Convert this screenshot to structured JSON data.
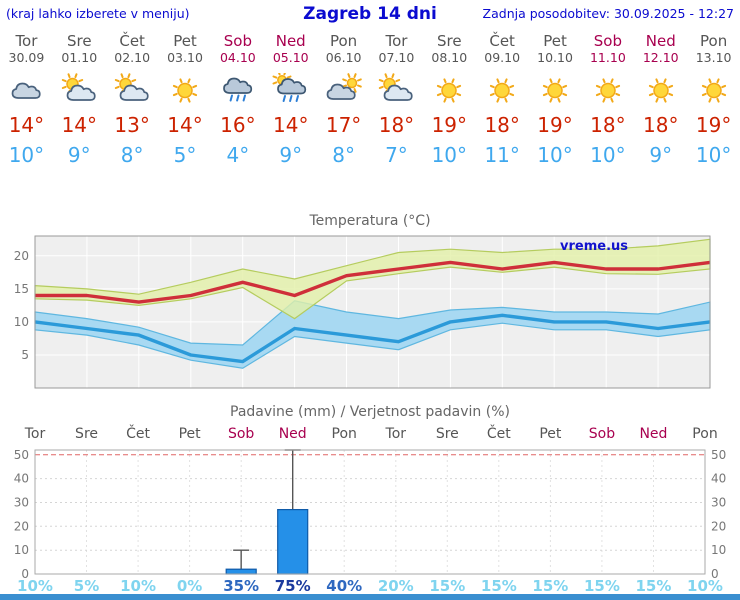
{
  "header": {
    "hint": "(kraj lahko izberete v meniju)",
    "title": "Zagreb 14 dni",
    "updated": "Zadnja posodobitev: 30.09.2025 - 12:27"
  },
  "watermark": "vreme.us",
  "colors": {
    "header_text": "#0b0bd0",
    "weekday_text": "#555555",
    "weekend_text": "#a8004f",
    "temp_max": "#cc2200",
    "temp_min": "#3fa8ee",
    "bar_fill": "#2590e8",
    "bar_stroke": "#0f5aa8",
    "prob_low": "#7fd4ef",
    "prob_mid": "#2e68c0",
    "prob_high": "#1b3a9e"
  },
  "days": [
    {
      "name": "Tor",
      "date": "30.09",
      "icon": "cloud",
      "tmax": "14°",
      "tmin": "10°",
      "weekend": false
    },
    {
      "name": "Sre",
      "date": "01.10",
      "icon": "sun-cloud",
      "tmax": "14°",
      "tmin": "9°",
      "weekend": false
    },
    {
      "name": "Čet",
      "date": "02.10",
      "icon": "sun-cloud",
      "tmax": "13°",
      "tmin": "8°",
      "weekend": false
    },
    {
      "name": "Pet",
      "date": "03.10",
      "icon": "sun",
      "tmax": "14°",
      "tmin": "5°",
      "weekend": false
    },
    {
      "name": "Sob",
      "date": "04.10",
      "icon": "rain",
      "tmax": "16°",
      "tmin": "4°",
      "weekend": true
    },
    {
      "name": "Ned",
      "date": "05.10",
      "icon": "rain-sun",
      "tmax": "14°",
      "tmin": "9°",
      "weekend": true
    },
    {
      "name": "Pon",
      "date": "06.10",
      "icon": "cloud-sun",
      "tmax": "17°",
      "tmin": "8°",
      "weekend": false
    },
    {
      "name": "Tor",
      "date": "07.10",
      "icon": "sun-cloud",
      "tmax": "18°",
      "tmin": "7°",
      "weekend": false
    },
    {
      "name": "Sre",
      "date": "08.10",
      "icon": "sun",
      "tmax": "19°",
      "tmin": "10°",
      "weekend": false
    },
    {
      "name": "Čet",
      "date": "09.10",
      "icon": "sun",
      "tmax": "18°",
      "tmin": "11°",
      "weekend": false
    },
    {
      "name": "Pet",
      "date": "10.10",
      "icon": "sun",
      "tmax": "19°",
      "tmin": "10°",
      "weekend": false
    },
    {
      "name": "Sob",
      "date": "11.10",
      "icon": "sun",
      "tmax": "18°",
      "tmin": "10°",
      "weekend": true
    },
    {
      "name": "Ned",
      "date": "12.10",
      "icon": "sun",
      "tmax": "18°",
      "tmin": "9°",
      "weekend": true
    },
    {
      "name": "Pon",
      "date": "13.10",
      "icon": "sun",
      "tmax": "19°",
      "tmin": "10°",
      "weekend": false
    }
  ],
  "chart_data": [
    {
      "type": "line",
      "title": "Temperatura (°C)",
      "categories": [
        "Tor",
        "Sre",
        "Čet",
        "Pet",
        "Sob",
        "Ned",
        "Pon",
        "Tor",
        "Sre",
        "Čet",
        "Pet",
        "Sob",
        "Ned",
        "Pon"
      ],
      "ylim": [
        0,
        23
      ],
      "yticks": [
        5,
        10,
        15,
        20
      ],
      "grid": true,
      "band_colors": {
        "max": "#e2f0a8",
        "max_edge": "#b5cc5e",
        "min": "#a8d9f2",
        "min_edge": "#5fb7e0"
      },
      "series": [
        {
          "name": "max",
          "color": "#cf2f3a",
          "values": [
            14,
            14,
            13,
            14,
            16,
            14,
            17,
            18,
            19,
            18,
            19,
            18,
            18,
            19
          ]
        },
        {
          "name": "min",
          "color": "#2b9ad9",
          "values": [
            10,
            9,
            8,
            5,
            4,
            9,
            8,
            7,
            10,
            11,
            10,
            10,
            9,
            10
          ]
        },
        {
          "name": "max_upper",
          "values": [
            15.5,
            15,
            14.2,
            16,
            18,
            16.5,
            18.5,
            20.5,
            21,
            20.5,
            21,
            21,
            21.5,
            22.5
          ]
        },
        {
          "name": "max_lower",
          "values": [
            13.5,
            13.3,
            12.5,
            13.5,
            15.2,
            10.5,
            16.2,
            17.3,
            18.3,
            17.5,
            18.3,
            17.3,
            17.2,
            18
          ]
        },
        {
          "name": "min_upper",
          "values": [
            11.5,
            10.5,
            9.2,
            6.8,
            6.5,
            13.2,
            11.5,
            10.5,
            11.8,
            12.2,
            11.5,
            11.5,
            11.2,
            13
          ]
        },
        {
          "name": "min_lower",
          "values": [
            8.8,
            8,
            6.5,
            4.2,
            3,
            7.8,
            6.8,
            5.8,
            8.8,
            9.8,
            8.8,
            8.8,
            7.8,
            8.8
          ]
        }
      ]
    },
    {
      "type": "bar",
      "title": "Padavine (mm) / Verjetnost padavin (%)",
      "categories": [
        "Tor",
        "Sre",
        "Čet",
        "Pet",
        "Sob",
        "Ned",
        "Pon",
        "Tor",
        "Sre",
        "Čet",
        "Pet",
        "Sob",
        "Ned",
        "Pon"
      ],
      "ylim": [
        0,
        52
      ],
      "yticks": [
        0,
        10,
        20,
        30,
        40,
        50
      ],
      "precip_mm": [
        0,
        0,
        0,
        0,
        2,
        27,
        0,
        0,
        0,
        0,
        0,
        0,
        0,
        0
      ],
      "whisker_min": [
        0,
        0,
        0,
        0,
        0.5,
        2,
        0,
        0,
        0,
        0,
        0,
        0,
        0,
        0
      ],
      "whisker_max": [
        0,
        0,
        0,
        0,
        10,
        52,
        0,
        0,
        0,
        0,
        0,
        0,
        0,
        0
      ],
      "probability_pct": [
        "10%",
        "5%",
        "10%",
        "0%",
        "35%",
        "75%",
        "40%",
        "20%",
        "15%",
        "15%",
        "15%",
        "15%",
        "15%",
        "10%"
      ]
    }
  ]
}
